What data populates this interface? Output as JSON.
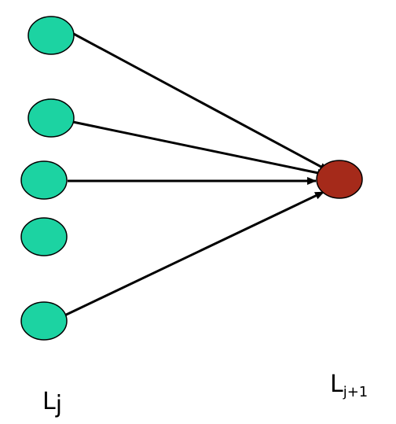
{
  "colors": {
    "source_node_fill": "#1cd3a2",
    "target_node_fill": "#a52a1a",
    "stroke": "#000000",
    "background": "#ffffff"
  },
  "labels": {
    "left_main": "L",
    "left_sub": "j",
    "right_main": "L",
    "right_sub": "j+1"
  }
}
